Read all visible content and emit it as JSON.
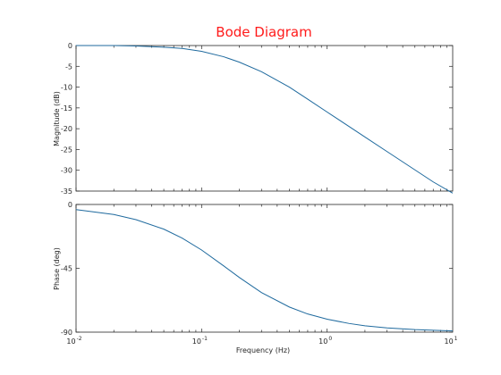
{
  "colors": {
    "title": "#ff1a1a",
    "line": "#1f6a9e",
    "axis": "#262626"
  },
  "chart_data": [
    {
      "type": "line",
      "panel": "magnitude",
      "title": "Bode Diagram",
      "xlabel": "",
      "ylabel": "Magnitude (dB)",
      "xscale": "log",
      "xlim": [
        0.01,
        10
      ],
      "ylim": [
        -35,
        0
      ],
      "xticks": [],
      "yticks": [
        0,
        -5,
        -10,
        -15,
        -20,
        -25,
        -30,
        -35
      ],
      "ytick_labels": [
        "0",
        "-5",
        "-10",
        "-15",
        "-20",
        "-25",
        "-30",
        "-35"
      ],
      "grid": false,
      "series": [
        {
          "x": [
            0.01,
            0.02,
            0.03,
            0.05,
            0.07,
            0.1,
            0.15,
            0.2,
            0.3,
            0.5,
            0.7,
            1,
            1.5,
            2,
            3,
            5,
            7,
            10
          ],
          "y": [
            0,
            0,
            -0.1,
            -0.4,
            -0.7,
            -1.4,
            -2.7,
            -4.0,
            -6.3,
            -10.0,
            -12.9,
            -16.0,
            -19.5,
            -22.0,
            -25.5,
            -29.9,
            -32.8,
            -35.5
          ]
        }
      ]
    },
    {
      "type": "line",
      "panel": "phase",
      "title": "",
      "xlabel": "Frequency  (Hz)",
      "ylabel": "Phase (deg)",
      "xscale": "log",
      "xlim": [
        0.01,
        10
      ],
      "ylim": [
        -90,
        0
      ],
      "xticks": [
        0.01,
        0.1,
        1,
        10
      ],
      "xtick_labels": [
        [
          "10",
          "-2"
        ],
        [
          "10",
          "-1"
        ],
        [
          "10",
          "0"
        ],
        [
          "10",
          "1"
        ]
      ],
      "yticks": [
        0,
        -45,
        -90
      ],
      "ytick_labels": [
        "0",
        "-45",
        "-90"
      ],
      "grid": false,
      "series": [
        {
          "x": [
            0.01,
            0.02,
            0.03,
            0.05,
            0.07,
            0.1,
            0.15,
            0.2,
            0.3,
            0.5,
            0.7,
            1,
            1.5,
            2,
            3,
            5,
            7,
            10
          ],
          "y": [
            -3.6,
            -7.1,
            -10.7,
            -17.4,
            -23.7,
            -32.1,
            -43.3,
            -51.5,
            -62.1,
            -72.3,
            -77.2,
            -80.9,
            -83.9,
            -85.5,
            -87.0,
            -88.2,
            -88.7,
            -89.1
          ]
        }
      ]
    }
  ]
}
